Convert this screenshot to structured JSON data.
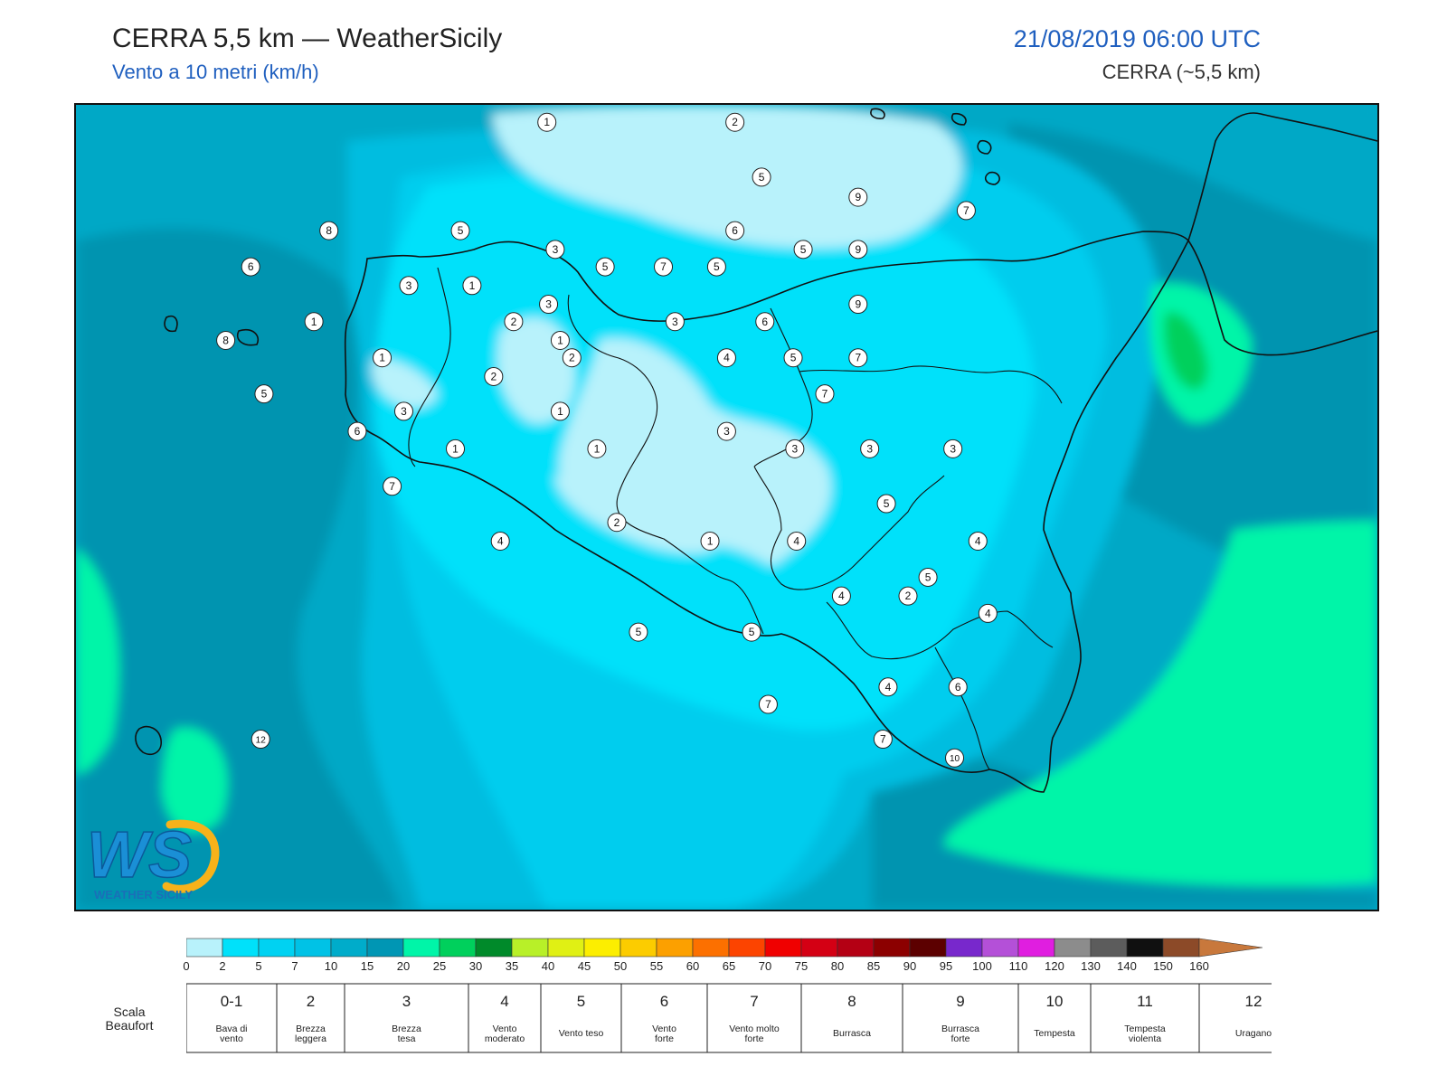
{
  "header": {
    "title": "CERRA 5,5 km — WeatherSicily",
    "subtitle": "Vento a 10 metri (km/h)",
    "datetime": "21/08/2019 06:00 UTC",
    "model": "CERRA (~5,5 km)"
  },
  "logo": {
    "text": "WS",
    "brand": "WEATHER SICILY"
  },
  "palette": {
    "c0": "#b8f2fb",
    "c2": "#00e1fa",
    "c5": "#00cdee",
    "c7": "#00bde0",
    "c10": "#00a8c6",
    "c12": "#0094b0",
    "c15": "#00f5a8",
    "c20": "#00d05c",
    "coast": "#111111"
  },
  "colorbar": {
    "ticks": [
      "0",
      "2",
      "5",
      "7",
      "10",
      "15",
      "20",
      "25",
      "30",
      "35",
      "40",
      "45",
      "50",
      "55",
      "60",
      "65",
      "70",
      "75",
      "80",
      "85",
      "90",
      "95",
      "100",
      "110",
      "120",
      "130",
      "140",
      "150",
      "160"
    ],
    "colors": [
      "#b8f2fb",
      "#00e1fa",
      "#00d2f2",
      "#00c2e6",
      "#00acca",
      "#0096b4",
      "#00f5a8",
      "#00d05c",
      "#008a2a",
      "#b8f028",
      "#e0f014",
      "#fcee00",
      "#fccc00",
      "#fca000",
      "#fc7000",
      "#fc4400",
      "#f00000",
      "#d40014",
      "#b40014",
      "#8c0000",
      "#5c0000",
      "#7828cc",
      "#b450d8",
      "#e01ee0",
      "#8c8c8c",
      "#5c5c5c",
      "#101010",
      "#8c4a28",
      "#c8783c"
    ]
  },
  "beaufort": {
    "label": "Scala Beaufort",
    "classes": [
      {
        "num": "0-1",
        "desc": [
          "Bava di",
          "vento"
        ]
      },
      {
        "num": "2",
        "desc": [
          "Brezza",
          "leggera"
        ]
      },
      {
        "num": "3",
        "desc": [
          "Brezza",
          "tesa"
        ]
      },
      {
        "num": "4",
        "desc": [
          "Vento",
          "moderato"
        ]
      },
      {
        "num": "5",
        "desc": [
          "Vento teso"
        ]
      },
      {
        "num": "6",
        "desc": [
          "Vento",
          "forte"
        ]
      },
      {
        "num": "7",
        "desc": [
          "Vento molto",
          "forte"
        ]
      },
      {
        "num": "8",
        "desc": [
          "Burrasca"
        ]
      },
      {
        "num": "9",
        "desc": [
          "Burrasca",
          "forte"
        ]
      },
      {
        "num": "10",
        "desc": [
          "Tempesta"
        ]
      },
      {
        "num": "11",
        "desc": [
          "Tempesta",
          "violenta"
        ]
      },
      {
        "num": "12",
        "desc": [
          "Uragano"
        ]
      }
    ]
  },
  "stations": [
    {
      "v": "1",
      "lon": 13.83,
      "lat": 38.97
    },
    {
      "v": "2",
      "lon": 14.96,
      "lat": 38.97
    },
    {
      "v": "8",
      "lon": 12.52,
      "lat": 38.16
    },
    {
      "v": "5",
      "lon": 13.31,
      "lat": 38.16
    },
    {
      "v": "3",
      "lon": 13.88,
      "lat": 38.02
    },
    {
      "v": "6",
      "lon": 12.05,
      "lat": 37.89
    },
    {
      "v": "5",
      "lon": 15.12,
      "lat": 38.56
    },
    {
      "v": "9",
      "lon": 15.7,
      "lat": 38.41
    },
    {
      "v": "7",
      "lon": 16.35,
      "lat": 38.31
    },
    {
      "v": "6",
      "lon": 14.96,
      "lat": 38.16
    },
    {
      "v": "5",
      "lon": 15.37,
      "lat": 38.02
    },
    {
      "v": "9",
      "lon": 15.7,
      "lat": 38.02
    },
    {
      "v": "5",
      "lon": 14.18,
      "lat": 37.89
    },
    {
      "v": "7",
      "lon": 14.53,
      "lat": 37.89
    },
    {
      "v": "5",
      "lon": 14.85,
      "lat": 37.89
    },
    {
      "v": "3",
      "lon": 13.0,
      "lat": 37.75
    },
    {
      "v": "1",
      "lon": 13.38,
      "lat": 37.75
    },
    {
      "v": "3",
      "lon": 13.84,
      "lat": 37.61
    },
    {
      "v": "9",
      "lon": 15.7,
      "lat": 37.61
    },
    {
      "v": "2",
      "lon": 13.63,
      "lat": 37.48
    },
    {
      "v": "1",
      "lon": 12.43,
      "lat": 37.48
    },
    {
      "v": "3",
      "lon": 14.6,
      "lat": 37.48
    },
    {
      "v": "6",
      "lon": 15.14,
      "lat": 37.48
    },
    {
      "v": "8",
      "lon": 11.9,
      "lat": 37.34
    },
    {
      "v": "1",
      "lon": 13.91,
      "lat": 37.34
    },
    {
      "v": "1",
      "lon": 12.84,
      "lat": 37.21
    },
    {
      "v": "2",
      "lon": 13.98,
      "lat": 37.21
    },
    {
      "v": "4",
      "lon": 14.91,
      "lat": 37.21
    },
    {
      "v": "5",
      "lon": 15.31,
      "lat": 37.21
    },
    {
      "v": "7",
      "lon": 15.7,
      "lat": 37.21
    },
    {
      "v": "2",
      "lon": 13.51,
      "lat": 37.07
    },
    {
      "v": "7",
      "lon": 15.5,
      "lat": 36.94
    },
    {
      "v": "5",
      "lon": 12.13,
      "lat": 36.94
    },
    {
      "v": "3",
      "lon": 12.97,
      "lat": 36.81
    },
    {
      "v": "1",
      "lon": 13.91,
      "lat": 36.81
    },
    {
      "v": "6",
      "lon": 12.69,
      "lat": 36.66
    },
    {
      "v": "3",
      "lon": 14.91,
      "lat": 36.66
    },
    {
      "v": "1",
      "lon": 13.28,
      "lat": 36.53
    },
    {
      "v": "1",
      "lon": 14.13,
      "lat": 36.53
    },
    {
      "v": "3",
      "lon": 15.32,
      "lat": 36.53
    },
    {
      "v": "3",
      "lon": 15.77,
      "lat": 36.53
    },
    {
      "v": "3",
      "lon": 16.27,
      "lat": 36.53
    },
    {
      "v": "7",
      "lon": 12.9,
      "lat": 36.25
    },
    {
      "v": "5",
      "lon": 15.87,
      "lat": 36.12
    },
    {
      "v": "2",
      "lon": 14.25,
      "lat": 35.98
    },
    {
      "v": "1",
      "lon": 14.81,
      "lat": 35.84
    },
    {
      "v": "4",
      "lon": 13.55,
      "lat": 35.84
    },
    {
      "v": "4",
      "lon": 15.33,
      "lat": 35.84
    },
    {
      "v": "4",
      "lon": 16.42,
      "lat": 35.84
    },
    {
      "v": "5",
      "lon": 16.12,
      "lat": 35.57
    },
    {
      "v": "4",
      "lon": 15.6,
      "lat": 35.43
    },
    {
      "v": "2",
      "lon": 16.0,
      "lat": 35.43
    },
    {
      "v": "4",
      "lon": 16.48,
      "lat": 35.3
    },
    {
      "v": "5",
      "lon": 14.38,
      "lat": 35.16
    },
    {
      "v": "5",
      "lon": 15.06,
      "lat": 35.16
    },
    {
      "v": "4",
      "lon": 15.88,
      "lat": 34.75
    },
    {
      "v": "6",
      "lon": 16.3,
      "lat": 34.75
    },
    {
      "v": "7",
      "lon": 15.16,
      "lat": 34.62
    },
    {
      "v": "12",
      "lon": 12.11,
      "lat": 34.36
    },
    {
      "v": "7",
      "lon": 15.85,
      "lat": 34.36
    },
    {
      "v": "10",
      "lon": 16.28,
      "lat": 34.22
    }
  ]
}
